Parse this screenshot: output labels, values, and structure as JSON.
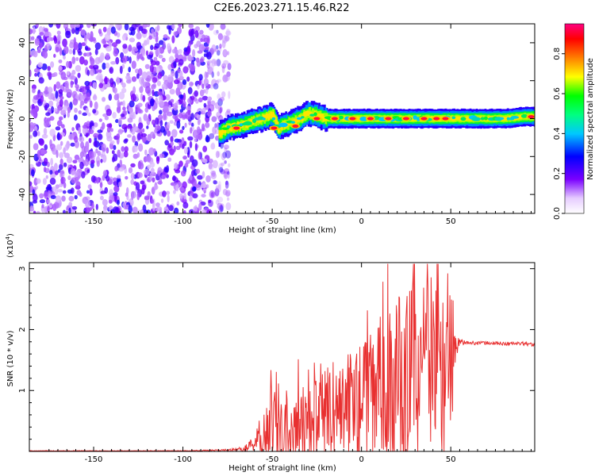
{
  "figure_title": "C2E6.2023.271.15.46.R22",
  "chart_data": [
    {
      "type": "heatmap",
      "title": "C2E6.2023.271.15.46.R22",
      "xlabel": "Height of straight line (km)",
      "ylabel": "Frequency (Hz)",
      "xlim": [
        -186,
        97
      ],
      "ylim": [
        -50,
        50
      ],
      "xticks": [
        -150,
        -100,
        -50,
        0,
        50
      ],
      "yticks": [
        -40,
        -20,
        0,
        20,
        40
      ],
      "colorbar": {
        "label": "Normalized spectral amplitude",
        "range": [
          0.0,
          0.95
        ],
        "ticks": [
          0.0,
          0.2,
          0.4,
          0.6,
          0.8
        ],
        "colormap": [
          "#ffffff",
          "#7a00ff",
          "#0000ff",
          "#00c8ff",
          "#00ff00",
          "#ffff00",
          "#ff7f00",
          "#ff0000",
          "#ff0080"
        ]
      },
      "regions": [
        {
          "name": "noise",
          "x_range": [
            -186,
            -78
          ],
          "y_range": [
            -50,
            50
          ],
          "amplitude": [
            0.0,
            0.25
          ]
        },
        {
          "name": "signal-ridge",
          "x_range": [
            -80,
            97
          ],
          "center_freq_hz": 0,
          "amplitude": [
            0.3,
            0.95
          ]
        }
      ],
      "ridge_center": {
        "x": [
          -80,
          -75,
          -70,
          -65,
          -60,
          -55,
          -50,
          -47,
          -45,
          -40,
          -35,
          -30,
          -20,
          -10,
          0,
          10,
          20,
          30,
          40,
          50,
          60,
          70,
          80,
          90,
          97
        ],
        "freq": [
          -8,
          -5,
          -4,
          -3,
          -1,
          0,
          2,
          -5,
          -4,
          -2,
          0,
          3,
          0,
          0,
          0,
          0,
          0,
          0,
          0,
          0,
          0,
          0,
          0,
          1,
          1
        ]
      },
      "peaks": [
        {
          "x": -70,
          "freq": -5
        },
        {
          "x": -49,
          "freq": -5
        },
        {
          "x": -37,
          "freq": -4
        },
        {
          "x": -25,
          "freq": 0
        },
        {
          "x": -15,
          "freq": 0
        },
        {
          "x": -5,
          "freq": 0
        },
        {
          "x": 5,
          "freq": 0
        },
        {
          "x": 15,
          "freq": 0
        },
        {
          "x": 25,
          "freq": 0
        },
        {
          "x": 35,
          "freq": 0
        },
        {
          "x": 42,
          "freq": 0
        },
        {
          "x": 47,
          "freq": 0
        },
        {
          "x": 95,
          "freq": 1
        }
      ]
    },
    {
      "type": "line",
      "xlabel": "Height of straight line (km)",
      "ylabel": "SNR (10 * v/v)",
      "yscale_label": "(x10",
      "yscale_exponent": "4",
      "yscale_close": ")",
      "xlim": [
        -186,
        97
      ],
      "ylim": [
        0,
        3.1
      ],
      "xticks": [
        -150,
        -100,
        -50,
        0,
        50
      ],
      "yticks": [
        1,
        2,
        3
      ],
      "series": [
        {
          "name": "SNR",
          "color": "#e83030",
          "x": [
            -186,
            -150,
            -100,
            -80,
            -70,
            -65,
            -60,
            -57,
            -55,
            -52,
            -50,
            -47,
            -45,
            -40,
            -35,
            -30,
            -25,
            -20,
            -15,
            -10,
            -5,
            0,
            5,
            10,
            15,
            20,
            25,
            30,
            35,
            40,
            45,
            50,
            52,
            55,
            60,
            70,
            80,
            90,
            97
          ],
          "base": [
            0.01,
            0.01,
            0.01,
            0.02,
            0.03,
            0.05,
            0.15,
            0.25,
            0.35,
            0.3,
            0.35,
            0.4,
            0.45,
            0.45,
            0.5,
            0.5,
            0.6,
            0.65,
            0.7,
            0.75,
            0.8,
            0.85,
            0.9,
            1.0,
            1.1,
            1.1,
            1.2,
            1.3,
            1.35,
            1.3,
            1.3,
            1.3,
            1.6,
            1.8,
            1.78,
            1.78,
            1.77,
            1.77,
            1.75
          ],
          "amp": [
            0.005,
            0.005,
            0.005,
            0.01,
            0.02,
            0.05,
            0.15,
            0.3,
            0.4,
            0.5,
            0.7,
            0.7,
            0.6,
            0.6,
            0.6,
            0.8,
            0.6,
            0.7,
            0.8,
            0.9,
            0.9,
            1.0,
            1.0,
            1.2,
            1.3,
            1.5,
            1.5,
            1.6,
            1.5,
            1.4,
            1.4,
            1.5,
            0.3,
            0.05,
            0.03,
            0.03,
            0.03,
            0.03,
            0.03
          ]
        }
      ]
    }
  ]
}
